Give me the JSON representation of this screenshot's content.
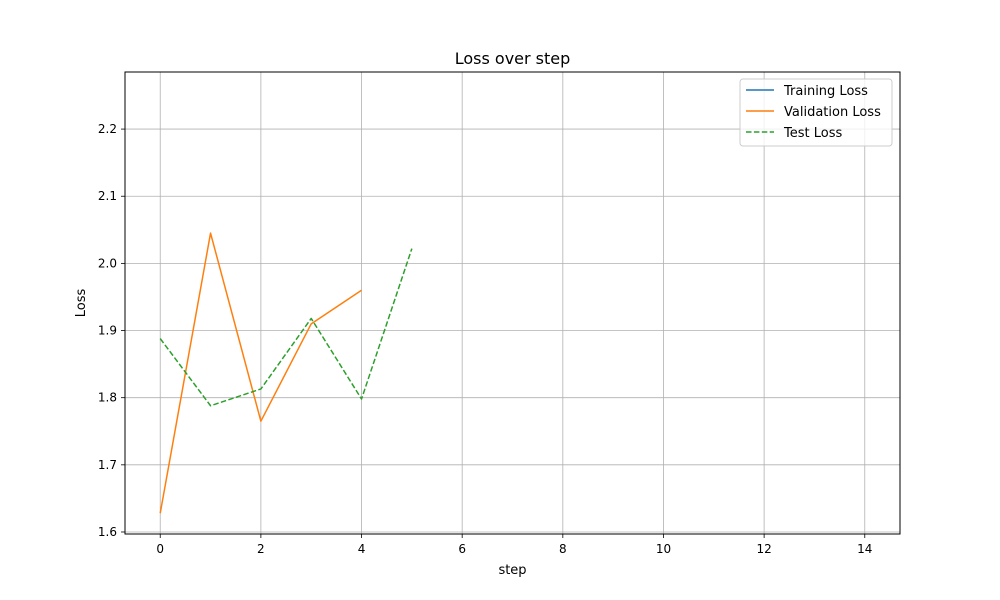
{
  "chart_data": {
    "type": "line",
    "title": "Loss over step",
    "xlabel": "step",
    "ylabel": "Loss",
    "xlim": [
      -0.7,
      14.7
    ],
    "ylim": [
      1.597,
      2.285
    ],
    "xticks": [
      0,
      2,
      4,
      6,
      8,
      10,
      12,
      14
    ],
    "yticks": [
      1.6,
      1.7,
      1.8,
      1.9,
      2.0,
      2.1,
      2.2
    ],
    "xtick_labels": [
      "0",
      "2",
      "4",
      "6",
      "8",
      "10",
      "12",
      "14"
    ],
    "ytick_labels": [
      "1.6",
      "1.7",
      "1.8",
      "1.9",
      "2.0",
      "2.1",
      "2.2"
    ],
    "grid": true,
    "legend_position": "top-right",
    "series": [
      {
        "name": "Training Loss",
        "color": "#1f77b4",
        "dash": "solid",
        "x": [],
        "y": []
      },
      {
        "name": "Validation Loss",
        "color": "#ff7f0e",
        "dash": "solid",
        "x": [
          0,
          1,
          2,
          3,
          4
        ],
        "y": [
          1.628,
          2.045,
          1.765,
          1.91,
          1.96
        ]
      },
      {
        "name": "Test Loss",
        "color": "#2ca02c",
        "dash": "dashed",
        "x": [
          0,
          1,
          2,
          3,
          4,
          5
        ],
        "y": [
          1.888,
          1.788,
          1.813,
          1.918,
          1.798,
          2.022
        ]
      }
    ]
  }
}
